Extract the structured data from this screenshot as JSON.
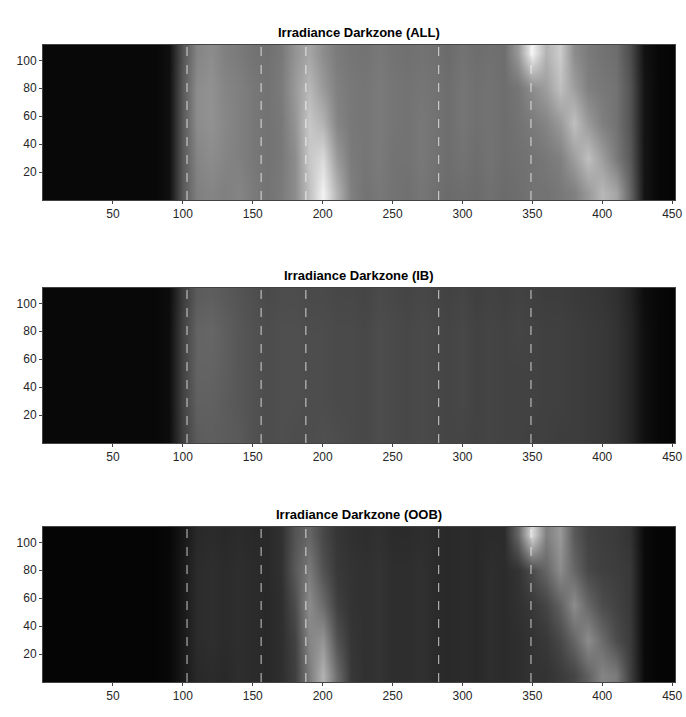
{
  "chart_data": [
    {
      "type": "heatmap",
      "title": "Irradiance Darkzone (ALL)",
      "x": [
        0,
        10,
        20,
        30,
        40,
        50,
        60,
        70,
        80,
        90,
        100,
        110,
        120,
        130,
        140,
        150,
        160,
        170,
        180,
        190,
        200,
        210,
        220,
        230,
        240,
        250,
        260,
        270,
        280,
        290,
        300,
        310,
        320,
        330,
        340,
        350,
        360,
        370,
        380,
        390,
        400,
        410,
        420,
        430,
        440,
        450
      ],
      "y": [
        5,
        30,
        55,
        80,
        105
      ],
      "z": [
        [
          0.03,
          0.03,
          0.03,
          0.03,
          0.03,
          0.03,
          0.03,
          0.03,
          0.03,
          0.06,
          0.35,
          0.5,
          0.52,
          0.5,
          0.52,
          0.48,
          0.45,
          0.48,
          0.55,
          0.75,
          0.95,
          0.7,
          0.5,
          0.45,
          0.47,
          0.45,
          0.44,
          0.46,
          0.44,
          0.42,
          0.43,
          0.42,
          0.44,
          0.42,
          0.43,
          0.45,
          0.45,
          0.47,
          0.5,
          0.6,
          0.72,
          0.65,
          0.4,
          0.08,
          0.03,
          0.02
        ],
        [
          0.03,
          0.03,
          0.03,
          0.03,
          0.03,
          0.03,
          0.03,
          0.03,
          0.03,
          0.06,
          0.35,
          0.52,
          0.55,
          0.52,
          0.5,
          0.47,
          0.45,
          0.47,
          0.55,
          0.78,
          0.85,
          0.6,
          0.48,
          0.46,
          0.48,
          0.45,
          0.45,
          0.47,
          0.45,
          0.43,
          0.45,
          0.43,
          0.45,
          0.43,
          0.44,
          0.45,
          0.47,
          0.5,
          0.62,
          0.75,
          0.62,
          0.48,
          0.35,
          0.08,
          0.03,
          0.02
        ],
        [
          0.03,
          0.03,
          0.03,
          0.03,
          0.03,
          0.03,
          0.03,
          0.03,
          0.03,
          0.06,
          0.35,
          0.55,
          0.57,
          0.53,
          0.5,
          0.47,
          0.45,
          0.47,
          0.58,
          0.78,
          0.7,
          0.52,
          0.47,
          0.46,
          0.48,
          0.46,
          0.45,
          0.47,
          0.45,
          0.43,
          0.46,
          0.44,
          0.45,
          0.43,
          0.45,
          0.48,
          0.52,
          0.6,
          0.75,
          0.6,
          0.5,
          0.45,
          0.33,
          0.08,
          0.03,
          0.02
        ],
        [
          0.03,
          0.03,
          0.03,
          0.03,
          0.03,
          0.03,
          0.03,
          0.03,
          0.03,
          0.06,
          0.35,
          0.55,
          0.57,
          0.52,
          0.5,
          0.47,
          0.45,
          0.48,
          0.6,
          0.72,
          0.6,
          0.5,
          0.47,
          0.46,
          0.48,
          0.46,
          0.45,
          0.46,
          0.45,
          0.43,
          0.46,
          0.44,
          0.45,
          0.43,
          0.46,
          0.55,
          0.62,
          0.75,
          0.62,
          0.5,
          0.47,
          0.45,
          0.33,
          0.08,
          0.03,
          0.02
        ],
        [
          0.03,
          0.03,
          0.03,
          0.03,
          0.03,
          0.03,
          0.03,
          0.03,
          0.03,
          0.06,
          0.33,
          0.52,
          0.55,
          0.5,
          0.48,
          0.45,
          0.44,
          0.47,
          0.58,
          0.65,
          0.55,
          0.48,
          0.46,
          0.45,
          0.47,
          0.45,
          0.44,
          0.45,
          0.44,
          0.42,
          0.45,
          0.43,
          0.44,
          0.43,
          0.6,
          0.95,
          0.7,
          0.8,
          0.55,
          0.48,
          0.45,
          0.43,
          0.3,
          0.07,
          0.03,
          0.02
        ]
      ],
      "zlim": [
        0,
        1
      ],
      "xlim": [
        0,
        452
      ],
      "ylim": [
        0,
        111
      ],
      "xticks": [
        50,
        100,
        150,
        200,
        250,
        300,
        350,
        400,
        450
      ],
      "yticks": [
        20,
        40,
        60,
        80,
        100
      ],
      "vlines": [
        103,
        156,
        188,
        283,
        349
      ],
      "grid": false
    },
    {
      "type": "heatmap",
      "title": "Irradiance Darkzone (IB)",
      "x": [
        0,
        10,
        20,
        30,
        40,
        50,
        60,
        70,
        80,
        90,
        100,
        110,
        120,
        130,
        140,
        150,
        160,
        170,
        180,
        190,
        200,
        210,
        220,
        230,
        240,
        250,
        260,
        270,
        280,
        290,
        300,
        310,
        320,
        330,
        340,
        350,
        360,
        370,
        380,
        390,
        400,
        410,
        420,
        430,
        440,
        450
      ],
      "y": [
        5,
        30,
        55,
        80,
        105
      ],
      "z": [
        [
          0.03,
          0.03,
          0.03,
          0.03,
          0.03,
          0.03,
          0.03,
          0.03,
          0.03,
          0.05,
          0.25,
          0.36,
          0.37,
          0.36,
          0.35,
          0.32,
          0.3,
          0.31,
          0.3,
          0.3,
          0.31,
          0.3,
          0.29,
          0.28,
          0.3,
          0.29,
          0.28,
          0.29,
          0.28,
          0.27,
          0.27,
          0.26,
          0.27,
          0.26,
          0.26,
          0.25,
          0.25,
          0.24,
          0.24,
          0.23,
          0.22,
          0.2,
          0.15,
          0.06,
          0.03,
          0.02
        ],
        [
          0.03,
          0.03,
          0.03,
          0.03,
          0.03,
          0.03,
          0.03,
          0.03,
          0.03,
          0.05,
          0.26,
          0.38,
          0.38,
          0.36,
          0.34,
          0.32,
          0.3,
          0.31,
          0.31,
          0.3,
          0.3,
          0.29,
          0.29,
          0.28,
          0.3,
          0.29,
          0.28,
          0.29,
          0.28,
          0.27,
          0.28,
          0.26,
          0.27,
          0.26,
          0.26,
          0.26,
          0.25,
          0.25,
          0.24,
          0.23,
          0.22,
          0.2,
          0.15,
          0.06,
          0.03,
          0.02
        ],
        [
          0.03,
          0.03,
          0.03,
          0.03,
          0.03,
          0.03,
          0.03,
          0.03,
          0.03,
          0.05,
          0.26,
          0.39,
          0.39,
          0.37,
          0.34,
          0.32,
          0.3,
          0.31,
          0.31,
          0.3,
          0.3,
          0.29,
          0.29,
          0.28,
          0.3,
          0.29,
          0.28,
          0.29,
          0.28,
          0.27,
          0.28,
          0.26,
          0.27,
          0.26,
          0.26,
          0.26,
          0.25,
          0.25,
          0.24,
          0.23,
          0.22,
          0.2,
          0.15,
          0.06,
          0.03,
          0.02
        ],
        [
          0.03,
          0.03,
          0.03,
          0.03,
          0.03,
          0.03,
          0.03,
          0.03,
          0.03,
          0.05,
          0.26,
          0.39,
          0.4,
          0.37,
          0.34,
          0.32,
          0.3,
          0.31,
          0.31,
          0.3,
          0.3,
          0.29,
          0.29,
          0.28,
          0.3,
          0.29,
          0.28,
          0.29,
          0.28,
          0.27,
          0.28,
          0.26,
          0.27,
          0.26,
          0.27,
          0.26,
          0.25,
          0.25,
          0.24,
          0.23,
          0.22,
          0.2,
          0.15,
          0.06,
          0.03,
          0.02
        ],
        [
          0.03,
          0.03,
          0.03,
          0.03,
          0.03,
          0.03,
          0.03,
          0.03,
          0.03,
          0.05,
          0.24,
          0.36,
          0.37,
          0.35,
          0.33,
          0.31,
          0.29,
          0.3,
          0.3,
          0.29,
          0.29,
          0.28,
          0.28,
          0.27,
          0.29,
          0.28,
          0.27,
          0.28,
          0.27,
          0.26,
          0.27,
          0.25,
          0.26,
          0.25,
          0.26,
          0.25,
          0.24,
          0.24,
          0.23,
          0.22,
          0.21,
          0.19,
          0.14,
          0.05,
          0.03,
          0.02
        ]
      ],
      "zlim": [
        0,
        1
      ],
      "xlim": [
        0,
        452
      ],
      "ylim": [
        0,
        111
      ],
      "xticks": [
        50,
        100,
        150,
        200,
        250,
        300,
        350,
        400,
        450
      ],
      "yticks": [
        20,
        40,
        60,
        80,
        100
      ],
      "vlines": [
        103,
        156,
        188,
        283,
        349
      ],
      "grid": false
    },
    {
      "type": "heatmap",
      "title": "Irradiance Darkzone (OOB)",
      "x": [
        0,
        10,
        20,
        30,
        40,
        50,
        60,
        70,
        80,
        90,
        100,
        110,
        120,
        130,
        140,
        150,
        160,
        170,
        180,
        190,
        200,
        210,
        220,
        230,
        240,
        250,
        260,
        270,
        280,
        290,
        300,
        310,
        320,
        330,
        340,
        350,
        360,
        370,
        380,
        390,
        400,
        410,
        420,
        430,
        440,
        450
      ],
      "y": [
        5,
        30,
        55,
        80,
        105
      ],
      "z": [
        [
          0.02,
          0.02,
          0.02,
          0.02,
          0.02,
          0.02,
          0.02,
          0.02,
          0.02,
          0.03,
          0.1,
          0.16,
          0.17,
          0.16,
          0.18,
          0.17,
          0.16,
          0.18,
          0.25,
          0.48,
          0.7,
          0.42,
          0.22,
          0.19,
          0.2,
          0.18,
          0.18,
          0.19,
          0.17,
          0.16,
          0.17,
          0.16,
          0.18,
          0.17,
          0.18,
          0.2,
          0.2,
          0.23,
          0.27,
          0.38,
          0.52,
          0.48,
          0.25,
          0.04,
          0.02,
          0.02
        ],
        [
          0.02,
          0.02,
          0.02,
          0.02,
          0.02,
          0.02,
          0.02,
          0.02,
          0.02,
          0.03,
          0.1,
          0.17,
          0.18,
          0.17,
          0.18,
          0.17,
          0.16,
          0.18,
          0.26,
          0.52,
          0.58,
          0.32,
          0.21,
          0.19,
          0.2,
          0.18,
          0.18,
          0.19,
          0.17,
          0.16,
          0.17,
          0.16,
          0.18,
          0.17,
          0.18,
          0.2,
          0.22,
          0.28,
          0.4,
          0.55,
          0.42,
          0.3,
          0.23,
          0.04,
          0.02,
          0.02
        ],
        [
          0.02,
          0.02,
          0.02,
          0.02,
          0.02,
          0.02,
          0.02,
          0.02,
          0.02,
          0.03,
          0.1,
          0.17,
          0.18,
          0.17,
          0.18,
          0.17,
          0.16,
          0.18,
          0.3,
          0.55,
          0.42,
          0.25,
          0.2,
          0.19,
          0.2,
          0.18,
          0.18,
          0.19,
          0.17,
          0.16,
          0.17,
          0.16,
          0.18,
          0.17,
          0.19,
          0.22,
          0.27,
          0.38,
          0.55,
          0.4,
          0.3,
          0.26,
          0.22,
          0.04,
          0.02,
          0.02
        ],
        [
          0.02,
          0.02,
          0.02,
          0.02,
          0.02,
          0.02,
          0.02,
          0.02,
          0.02,
          0.03,
          0.1,
          0.17,
          0.18,
          0.17,
          0.18,
          0.17,
          0.16,
          0.19,
          0.35,
          0.48,
          0.32,
          0.22,
          0.2,
          0.19,
          0.2,
          0.18,
          0.18,
          0.19,
          0.17,
          0.16,
          0.17,
          0.16,
          0.18,
          0.17,
          0.2,
          0.3,
          0.4,
          0.55,
          0.4,
          0.28,
          0.25,
          0.24,
          0.22,
          0.04,
          0.02,
          0.02
        ],
        [
          0.02,
          0.02,
          0.02,
          0.02,
          0.02,
          0.02,
          0.02,
          0.02,
          0.02,
          0.03,
          0.09,
          0.16,
          0.17,
          0.16,
          0.17,
          0.16,
          0.16,
          0.19,
          0.33,
          0.4,
          0.28,
          0.21,
          0.19,
          0.18,
          0.19,
          0.17,
          0.17,
          0.18,
          0.17,
          0.16,
          0.17,
          0.16,
          0.17,
          0.17,
          0.4,
          0.85,
          0.5,
          0.6,
          0.35,
          0.26,
          0.24,
          0.23,
          0.2,
          0.04,
          0.02,
          0.02
        ]
      ],
      "zlim": [
        0,
        1
      ],
      "xlim": [
        0,
        452
      ],
      "ylim": [
        0,
        111
      ],
      "xticks": [
        50,
        100,
        150,
        200,
        250,
        300,
        350,
        400,
        450
      ],
      "yticks": [
        20,
        40,
        60,
        80,
        100
      ],
      "vlines": [
        103,
        156,
        188,
        283,
        349
      ],
      "grid": false
    }
  ]
}
